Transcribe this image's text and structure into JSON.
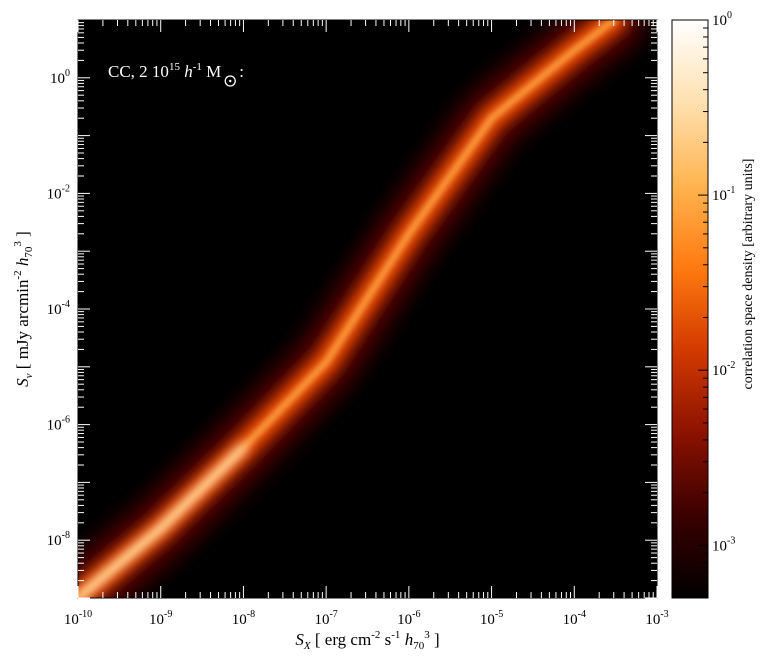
{
  "chart_data": {
    "type": "heatmap",
    "annotation": {
      "prefix": "CC, 2 10",
      "exponent": "15",
      "h_symbol": "h",
      "h_exponent": "-1",
      "mass_unit": "M",
      "suffix": ":"
    },
    "x_axis": {
      "scale": "log",
      "range": [
        1e-10,
        0.001
      ],
      "ticks": [
        {
          "value": 1e-10,
          "base": "10",
          "exp": "-10"
        },
        {
          "value": 1e-09,
          "base": "10",
          "exp": "-9"
        },
        {
          "value": 1e-08,
          "base": "10",
          "exp": "-8"
        },
        {
          "value": 1e-07,
          "base": "10",
          "exp": "-7"
        },
        {
          "value": 1e-06,
          "base": "10",
          "exp": "-6"
        },
        {
          "value": 1e-05,
          "base": "10",
          "exp": "-5"
        },
        {
          "value": 0.0001,
          "base": "10",
          "exp": "-4"
        },
        {
          "value": 0.001,
          "base": "10",
          "exp": "-3"
        }
      ],
      "label": {
        "symbol": "S",
        "sub": "X",
        "open": "[ erg cm",
        "e1": "-2",
        "s": " s",
        "e2": "-1",
        "h": " h",
        "hsub": "70",
        "e3": "3",
        "close": " ]"
      }
    },
    "y_axis": {
      "scale": "log",
      "range": [
        1e-09,
        10.0
      ],
      "ticks": [
        {
          "value": 1e-08,
          "base": "10",
          "exp": "-8"
        },
        {
          "value": 1e-06,
          "base": "10",
          "exp": "-6"
        },
        {
          "value": 0.0001,
          "base": "10",
          "exp": "-4"
        },
        {
          "value": 0.01,
          "base": "10",
          "exp": "-2"
        },
        {
          "value": 1.0,
          "base": "10",
          "exp": "0"
        }
      ],
      "label": {
        "symbol": "S",
        "sub": "ν",
        "open": "[ mJy arcmin",
        "e1": "-2",
        "h": " h",
        "hsub": "70",
        "e2": "3",
        "close": " ]"
      }
    },
    "colorbar": {
      "scale": "log",
      "range": [
        0.0005,
        1.0
      ],
      "ticks": [
        {
          "value": 0.001,
          "base": "10",
          "exp": "-3"
        },
        {
          "value": 0.01,
          "base": "10",
          "exp": "-2"
        },
        {
          "value": 0.1,
          "base": "10",
          "exp": "-1"
        },
        {
          "value": 1.0,
          "base": "10",
          "exp": "0"
        }
      ],
      "label": "correlation space density [arbitrary units]",
      "colormap": [
        "#000000",
        "#3a0000",
        "#8c1200",
        "#d23a00",
        "#ff7a10",
        "#ffb450",
        "#ffe0b0",
        "#ffffff"
      ]
    },
    "ridge": {
      "description_points": [
        {
          "x": 1e-10,
          "y": 1e-09
        },
        {
          "x": 1e-09,
          "y": 1.6e-08
        },
        {
          "x": 1e-08,
          "y": 4e-07
        },
        {
          "x": 1e-07,
          "y": 1.2e-05
        },
        {
          "x": 1e-06,
          "y": 0.002
        },
        {
          "x": 1e-05,
          "y": 0.2
        },
        {
          "x": 0.0001,
          "y": 3
        },
        {
          "x": 0.0003,
          "y": 10
        }
      ]
    }
  }
}
